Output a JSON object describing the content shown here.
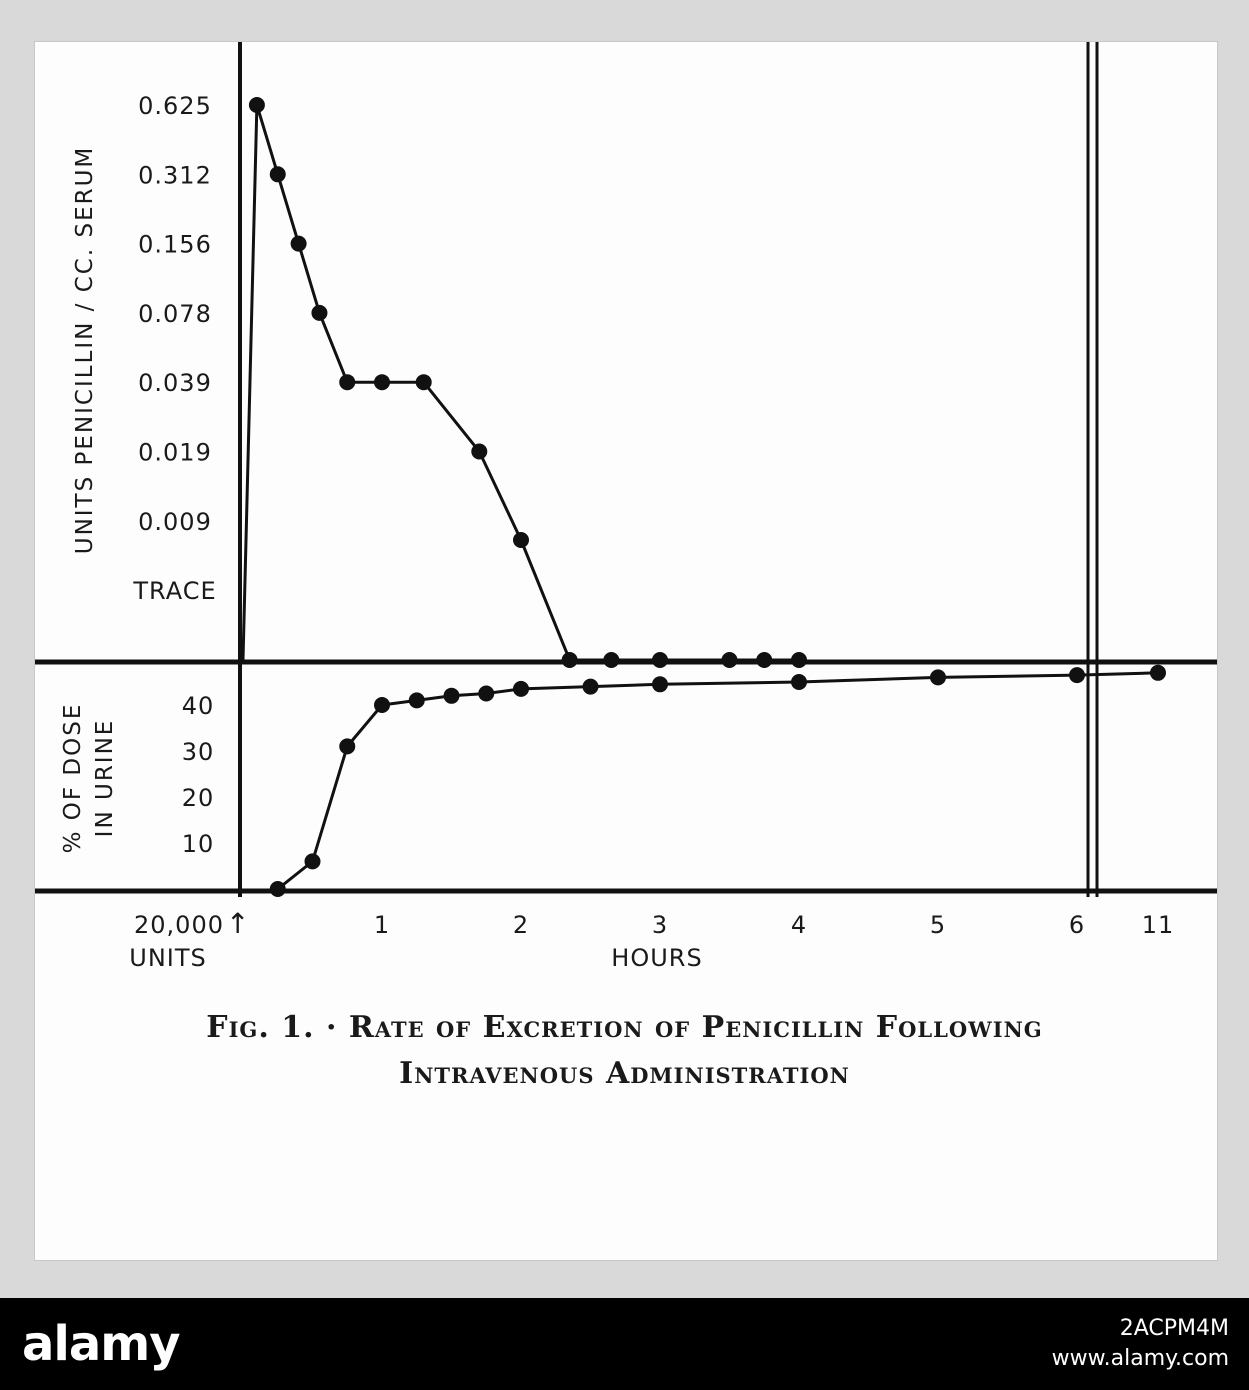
{
  "chart_data": [
    {
      "type": "line",
      "panel": "serum",
      "ylabel": "UNITS PENICILLIN / CC. SERUM",
      "y_scale": "ordinal (log2 dilution)",
      "y_categories": [
        "TRACE",
        "0.009",
        "0.019",
        "0.039",
        "0.078",
        "0.156",
        "0.312",
        "0.625"
      ],
      "points": [
        {
          "x": 0.0,
          "y": "0"
        },
        {
          "x": 0.1,
          "y": "0.625"
        },
        {
          "x": 0.25,
          "y": "0.312"
        },
        {
          "x": 0.4,
          "y": "0.156"
        },
        {
          "x": 0.55,
          "y": "0.078"
        },
        {
          "x": 0.75,
          "y": "0.039"
        },
        {
          "x": 1.0,
          "y": "0.039"
        },
        {
          "x": 1.3,
          "y": "0.039"
        },
        {
          "x": 1.7,
          "y": "0.019"
        },
        {
          "x": 2.0,
          "y": "0.009 to TRACE"
        },
        {
          "x": 2.35,
          "y": "0"
        },
        {
          "x": 2.65,
          "y": "0"
        },
        {
          "x": 3.0,
          "y": "0"
        },
        {
          "x": 3.5,
          "y": "0"
        },
        {
          "x": 3.75,
          "y": "0"
        },
        {
          "x": 4.0,
          "y": "0"
        }
      ]
    },
    {
      "type": "line",
      "panel": "urine",
      "ylabel": "% OF DOSE IN URINE",
      "yticks": [
        10,
        20,
        30,
        40
      ],
      "ylim": [
        0,
        50
      ],
      "points": [
        {
          "x": 0.25,
          "y": 0
        },
        {
          "x": 0.5,
          "y": 6
        },
        {
          "x": 0.75,
          "y": 31
        },
        {
          "x": 1.0,
          "y": 40
        },
        {
          "x": 1.25,
          "y": 41
        },
        {
          "x": 1.5,
          "y": 42
        },
        {
          "x": 1.75,
          "y": 42.5
        },
        {
          "x": 2.0,
          "y": 43.5
        },
        {
          "x": 2.5,
          "y": 44
        },
        {
          "x": 3.0,
          "y": 44.5
        },
        {
          "x": 4.0,
          "y": 45
        },
        {
          "x": 5.0,
          "y": 46
        },
        {
          "x": 6.0,
          "y": 46.5
        },
        {
          "x": 11.0,
          "y": 47
        }
      ]
    }
  ],
  "x_axis": {
    "xlabel": "HOURS",
    "ticks": [
      "1",
      "2",
      "3",
      "4",
      "5",
      "6",
      "11"
    ],
    "dose_label_line1": "20,000",
    "dose_label_line2": "UNITS",
    "dose_arrow": "↑"
  },
  "caption": {
    "line1": "Fig. 1. · Rate of Excretion of Penicillin Following",
    "line2": "Intravenous Administration"
  },
  "footer": {
    "logo": "alamy",
    "image_id": "2ACPM4M",
    "url": "www.alamy.com"
  }
}
